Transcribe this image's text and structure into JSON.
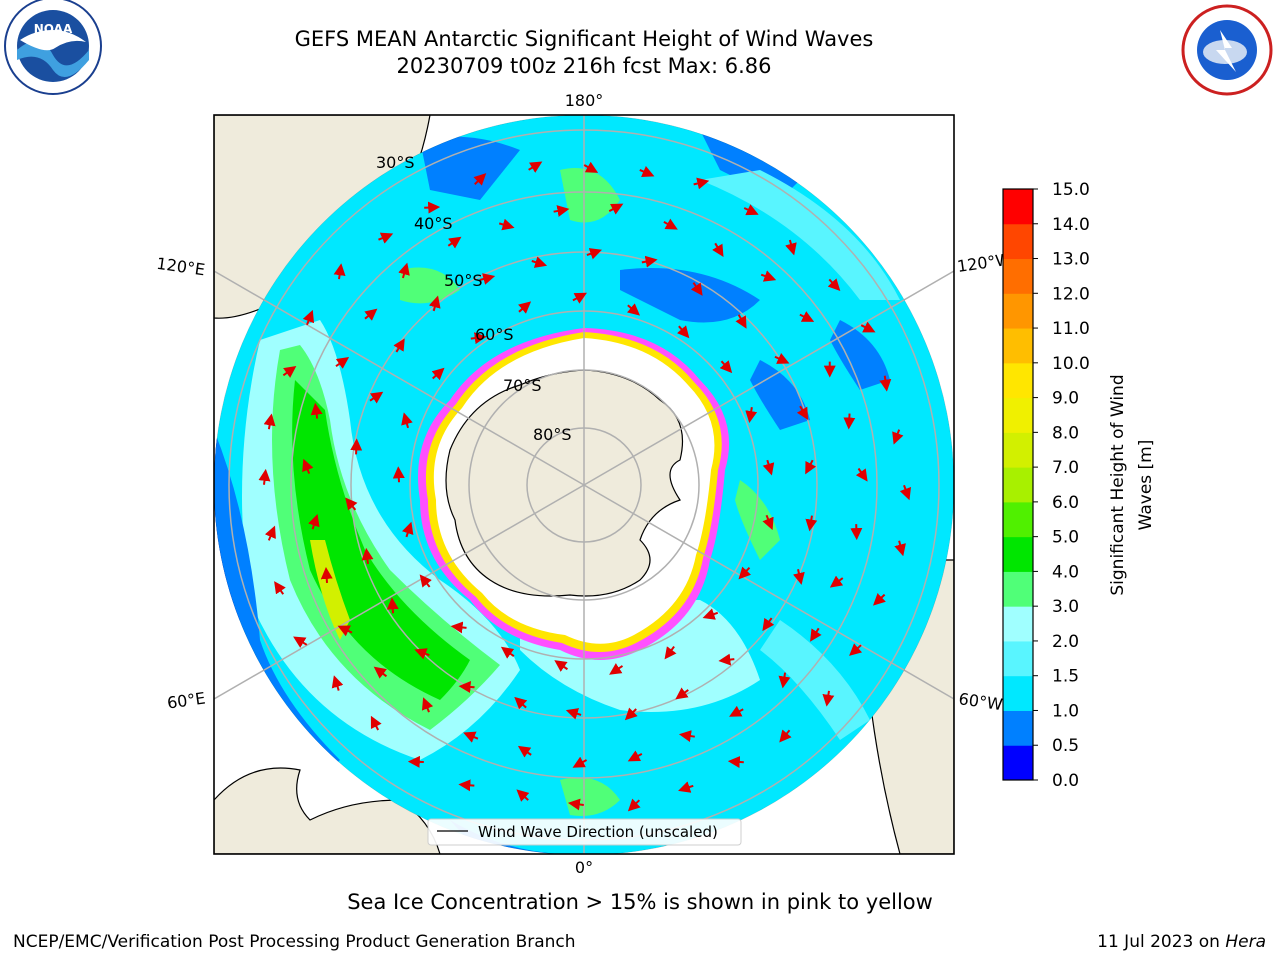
{
  "title": {
    "line1": "GEFS MEAN Antarctic Significant Height of Wind Waves",
    "line2": "20230709 t00z 216h fcst   Max: 6.86"
  },
  "logos": {
    "left": {
      "name": "noaa-logo",
      "text": "NOAA"
    },
    "right": {
      "name": "nws-logo",
      "text": "NATIONAL WEATHER SERVICE"
    }
  },
  "map": {
    "longitude_labels": {
      "top": "180°",
      "bottom": "0°",
      "upper_left": "120°E",
      "upper_right": "120°W",
      "lower_left": "60°E",
      "lower_right": "60°W"
    },
    "latitude_labels": [
      "30°S",
      "40°S",
      "50°S",
      "60°S",
      "70°S",
      "80°S"
    ],
    "legend": "Wind Wave Direction (unscaled)"
  },
  "colorbar": {
    "label_line1": "Significant Height of Wind",
    "label_line2": "Waves [m]",
    "levels": [
      0.0,
      0.5,
      1.0,
      1.5,
      2.0,
      3.0,
      4.0,
      5.0,
      6.0,
      7.0,
      8.0,
      9.0,
      10.0,
      11.0,
      12.0,
      13.0,
      14.0,
      15.0
    ],
    "tick_labels": [
      "0.0",
      "0.5",
      "1.0",
      "1.5",
      "2.0",
      "3.0",
      "4.0",
      "5.0",
      "6.0",
      "7.0",
      "8.0",
      "9.0",
      "10.0",
      "11.0",
      "12.0",
      "13.0",
      "14.0",
      "15.0"
    ],
    "colors": [
      "#0000ff",
      "#0080ff",
      "#00e8ff",
      "#59f5ff",
      "#a0ffff",
      "#50ff78",
      "#00e600",
      "#50f000",
      "#a8f000",
      "#d2f000",
      "#f0f000",
      "#ffe600",
      "#ffbe00",
      "#ff9600",
      "#ff6e00",
      "#ff4600",
      "#ff0000"
    ]
  },
  "bottom_note": "Sea Ice Concentration > 15% is shown in pink to yellow",
  "footer": {
    "left": "NCEP/EMC/Verification Post Processing Product Generation Branch",
    "date": "11 Jul 2023 on ",
    "machine": "Hera"
  }
}
